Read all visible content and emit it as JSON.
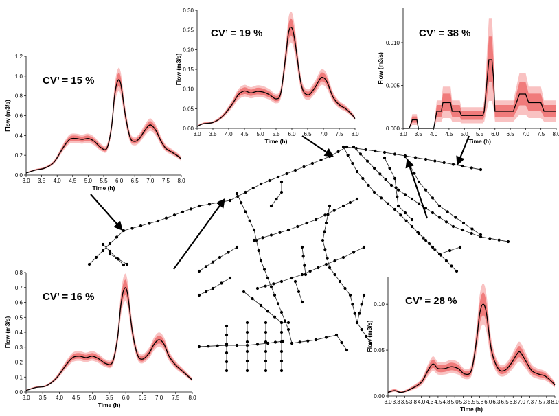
{
  "chart_data": [
    {
      "type": "area",
      "annotation": "CV’ = 15 %",
      "xlabel": "Time (h)",
      "ylabel": "Flow (m3/s)",
      "xlim": [
        3.0,
        8.0
      ],
      "ylim": [
        0,
        1.2
      ],
      "x_ticks": [
        "3.0",
        "3.5",
        "4.0",
        "4.5",
        "5.0",
        "5.5",
        "6.0",
        "6.5",
        "7.0",
        "7.5",
        "8.0"
      ],
      "y_ticks": [
        "0.0",
        "0.2",
        "0.4",
        "0.6",
        "0.8",
        "1.0",
        "1.2"
      ],
      "x": [
        3.0,
        3.3,
        3.6,
        3.9,
        4.2,
        4.4,
        4.6,
        4.8,
        5.0,
        5.2,
        5.4,
        5.6,
        5.75,
        5.85,
        5.95,
        6.05,
        6.2,
        6.35,
        6.5,
        6.65,
        6.8,
        6.95,
        7.05,
        7.2,
        7.35,
        7.5,
        7.7,
        7.9,
        8.0
      ],
      "y": [
        0.02,
        0.05,
        0.07,
        0.13,
        0.28,
        0.36,
        0.37,
        0.36,
        0.37,
        0.34,
        0.28,
        0.27,
        0.48,
        0.8,
        0.95,
        0.92,
        0.6,
        0.38,
        0.34,
        0.37,
        0.44,
        0.5,
        0.5,
        0.44,
        0.34,
        0.27,
        0.23,
        0.19,
        0.16
      ],
      "band": 0.12
    },
    {
      "type": "area",
      "annotation": "CV’ = 19 %",
      "xlabel": "Time (h)",
      "ylabel": "Flow (m3/s)",
      "xlim": [
        3.0,
        8.0
      ],
      "ylim": [
        0,
        0.3
      ],
      "x_ticks": [
        "3.0",
        "3.5",
        "4.0",
        "4.5",
        "5.0",
        "5.5",
        "6.0",
        "6.5",
        "7.0",
        "7.5",
        "8.0"
      ],
      "y_ticks": [
        "0.00",
        "0.05",
        "0.10",
        "0.15",
        "0.20",
        "0.25",
        "0.30"
      ],
      "x": [
        3.0,
        3.2,
        3.5,
        3.8,
        4.1,
        4.3,
        4.5,
        4.7,
        4.9,
        5.1,
        5.3,
        5.5,
        5.65,
        5.8,
        5.9,
        6.0,
        6.1,
        6.3,
        6.5,
        6.7,
        6.85,
        6.95,
        7.1,
        7.3,
        7.5,
        7.7,
        7.9,
        8.0
      ],
      "y": [
        0.005,
        0.012,
        0.015,
        0.03,
        0.06,
        0.085,
        0.095,
        0.09,
        0.094,
        0.092,
        0.085,
        0.075,
        0.09,
        0.18,
        0.245,
        0.255,
        0.22,
        0.11,
        0.085,
        0.1,
        0.12,
        0.13,
        0.12,
        0.08,
        0.06,
        0.05,
        0.035,
        0.025
      ],
      "band": 0.15
    },
    {
      "type": "area",
      "annotation": "CV’ = 38 %",
      "xlabel": "Time (h)",
      "ylabel": "Flow (m3/s)",
      "xlim": [
        3.0,
        8.0
      ],
      "ylim": [
        0,
        0.014
      ],
      "x_ticks": [
        "3.0",
        "3.5",
        "4.0",
        "4.5",
        "5.0",
        "5.5",
        "6.0",
        "6.5",
        "7.0",
        "7.5",
        "8.0"
      ],
      "y_ticks": [
        "0.000",
        "0.005",
        "0.010"
      ],
      "x": [
        3.0,
        3.2,
        3.3,
        3.45,
        3.5,
        4.0,
        4.1,
        4.25,
        4.3,
        4.55,
        4.6,
        4.85,
        4.9,
        5.6,
        5.65,
        5.7,
        5.8,
        5.85,
        5.9,
        5.95,
        6.0,
        6.2,
        6.3,
        6.6,
        6.7,
        6.8,
        6.9,
        7.0,
        7.1,
        7.5,
        7.6,
        8.0
      ],
      "y": [
        0,
        0,
        0.001,
        0.001,
        0,
        0,
        0.002,
        0.002,
        0.003,
        0.003,
        0.002,
        0.002,
        0.0015,
        0.0015,
        0.002,
        0.004,
        0.008,
        0.008,
        0.008,
        0.006,
        0.002,
        0.002,
        0.002,
        0.002,
        0.003,
        0.004,
        0.004,
        0.004,
        0.003,
        0.003,
        0.002,
        0.002
      ],
      "band": 0.6
    },
    {
      "type": "area",
      "annotation": "CV’ = 16 %",
      "xlabel": "Time (h)",
      "ylabel": "Flow (m3/s)",
      "xlim": [
        3.0,
        8.0
      ],
      "ylim": [
        0,
        0.8
      ],
      "x_ticks": [
        "3.0",
        "3.5",
        "4.0",
        "4.5",
        "5.0",
        "5.5",
        "6.0",
        "6.5",
        "7.0",
        "7.5",
        "8.0"
      ],
      "y_ticks": [
        "0.0",
        "0.1",
        "0.2",
        "0.3",
        "0.4",
        "0.5",
        "0.6",
        "0.7",
        "0.8"
      ],
      "x": [
        3.0,
        3.3,
        3.6,
        3.9,
        4.2,
        4.4,
        4.6,
        4.8,
        5.0,
        5.2,
        5.4,
        5.6,
        5.75,
        5.85,
        5.95,
        6.05,
        6.2,
        6.35,
        6.5,
        6.7,
        6.85,
        7.0,
        7.15,
        7.3,
        7.5,
        7.7,
        7.9,
        8.0
      ],
      "y": [
        0.01,
        0.03,
        0.04,
        0.09,
        0.18,
        0.23,
        0.24,
        0.23,
        0.24,
        0.22,
        0.19,
        0.2,
        0.36,
        0.58,
        0.69,
        0.66,
        0.4,
        0.25,
        0.22,
        0.26,
        0.32,
        0.35,
        0.32,
        0.24,
        0.18,
        0.14,
        0.1,
        0.08
      ],
      "band": 0.13
    },
    {
      "type": "area",
      "annotation": "CV’ = 28 %",
      "xlabel": "Time (h)",
      "ylabel": "Flow (m3/s)",
      "xlim": [
        3.0,
        8.0
      ],
      "ylim": [
        0,
        0.13
      ],
      "x_ticks": [
        "3.0",
        "3.3",
        "3.5",
        "3.8",
        "4.0",
        "4.3",
        "4.5",
        "4.8",
        "5.0",
        "5.3",
        "5.5",
        "5.8",
        "6.0",
        "6.3",
        "6.5",
        "6.8",
        "7.0",
        "7.3",
        "7.5",
        "7.8",
        "8.0"
      ],
      "y_ticks": [
        "0.00",
        "0.05",
        "0.10"
      ],
      "x": [
        3.0,
        3.2,
        3.4,
        3.7,
        4.0,
        4.2,
        4.35,
        4.5,
        4.7,
        4.9,
        5.1,
        5.3,
        5.5,
        5.65,
        5.75,
        5.85,
        5.95,
        6.1,
        6.3,
        6.5,
        6.7,
        6.85,
        6.95,
        7.1,
        7.3,
        7.5,
        7.7,
        7.9,
        8.0
      ],
      "y": [
        0.004,
        0.006,
        0.004,
        0.008,
        0.015,
        0.028,
        0.035,
        0.03,
        0.03,
        0.032,
        0.03,
        0.024,
        0.028,
        0.06,
        0.09,
        0.1,
        0.09,
        0.05,
        0.03,
        0.028,
        0.036,
        0.045,
        0.048,
        0.04,
        0.028,
        0.024,
        0.022,
        0.016,
        0.012
      ],
      "band": 0.22
    }
  ]
}
